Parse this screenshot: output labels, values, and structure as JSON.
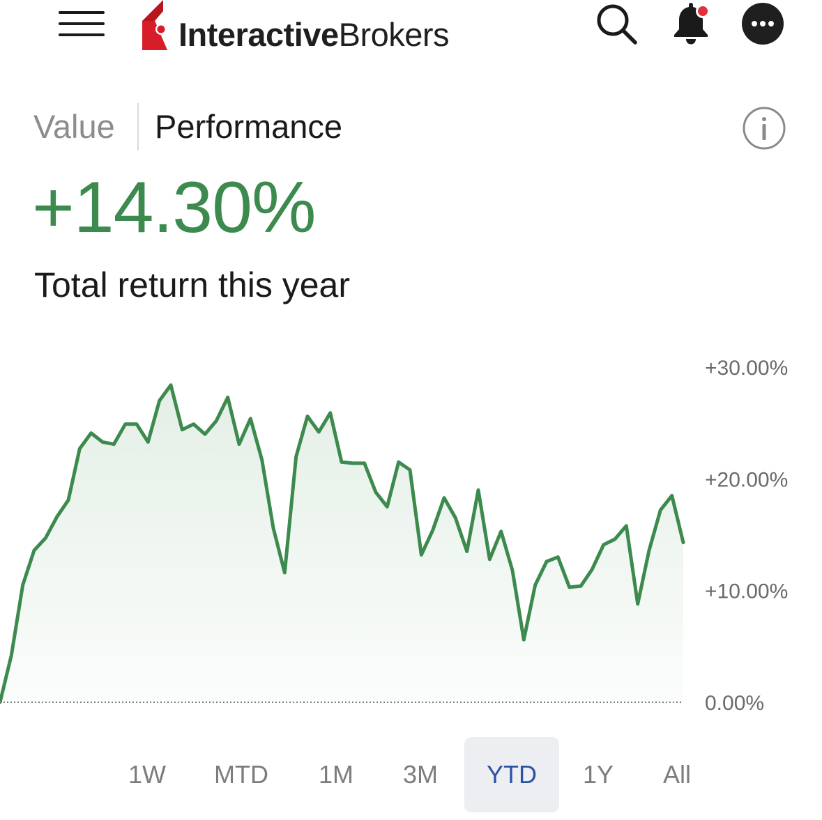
{
  "header": {
    "logo": {
      "bold_text": "Interactive",
      "regular_text": "Brokers",
      "accent_color": "#d71e28"
    },
    "icons": {
      "menu": "hamburger-menu-icon",
      "search": "search-icon",
      "notifications": "bell-icon",
      "more": "more-options-icon"
    },
    "notification_dot_color": "#e0303a"
  },
  "view_tabs": {
    "value_label": "Value",
    "performance_label": "Performance",
    "selected": "Performance"
  },
  "info_icon": "info-icon",
  "summary": {
    "return_value": "+14.30%",
    "return_color": "#3c8a4d",
    "subtitle": "Total return this year"
  },
  "range_selector": {
    "options": [
      "1W",
      "MTD",
      "1M",
      "3M",
      "YTD",
      "1Y",
      "All"
    ],
    "selected": "YTD",
    "active_color": "#2b52a3"
  },
  "chart_data": {
    "type": "area",
    "title": "",
    "xlabel": "",
    "ylabel": "",
    "y_axis_position": "right",
    "y_unit": "%",
    "ylim": [
      0,
      30
    ],
    "y_ticks": [
      0,
      10,
      20,
      30
    ],
    "y_tick_labels": [
      "0.00%",
      "+10.00%",
      "+20.00%",
      "+30.00%"
    ],
    "baseline_style": "dotted",
    "grid": false,
    "legend": "none",
    "line_color": "#3c8a4d",
    "series": [
      {
        "values": [
          0.0,
          4.2,
          10.5,
          13.6,
          14.7,
          16.6,
          18.1,
          22.7,
          24.1,
          23.3,
          23.1,
          24.9,
          24.9,
          23.3,
          27.0,
          28.4,
          24.4,
          24.9,
          24.0,
          25.2,
          27.3,
          23.1,
          25.4,
          21.7,
          15.6,
          11.6,
          22.0,
          25.6,
          24.2,
          25.9,
          21.5,
          21.4,
          21.4,
          18.8,
          17.5,
          21.5,
          20.8,
          13.2,
          15.4,
          18.3,
          16.5,
          13.5,
          19.0,
          12.8,
          15.3,
          11.8,
          5.6,
          10.5,
          12.6,
          13.0,
          10.3,
          10.4,
          11.9,
          14.1,
          14.6,
          15.8,
          8.8,
          13.6,
          17.2,
          18.5,
          14.3
        ]
      }
    ]
  }
}
